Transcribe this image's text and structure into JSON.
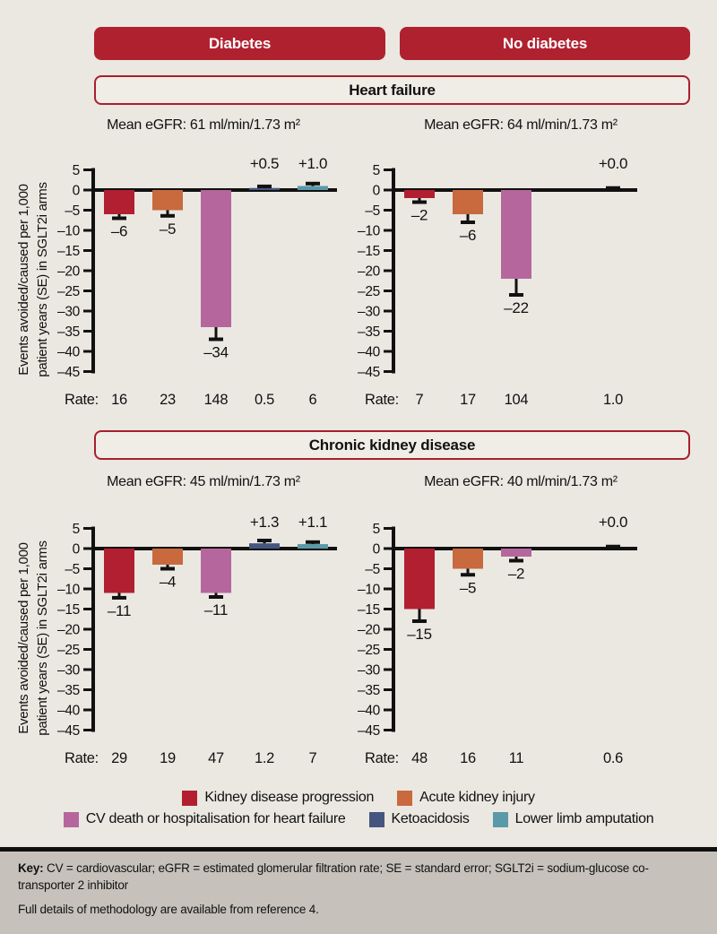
{
  "colors": {
    "background": "#eae8e1",
    "footer_background": "#c6c2bb",
    "header_red": "#b02130",
    "box_border": "#a81f2e",
    "axis": "#111111"
  },
  "header": {
    "group_buttons": [
      {
        "label": "Diabetes"
      },
      {
        "label": "No diabetes"
      }
    ]
  },
  "sections": [
    {
      "title": "Heart failure"
    },
    {
      "title": "Chronic kidney disease"
    }
  ],
  "y_axis": {
    "title_line1": "Events avoided/caused per 1,000",
    "title_line2": "patient years (SE) in SGLT2i arms",
    "range": [
      -45,
      5
    ],
    "ticks": [
      {
        "v": 5,
        "label": "5"
      },
      {
        "v": 0,
        "label": "0"
      },
      {
        "v": -5,
        "label": "–5"
      },
      {
        "v": -10,
        "label": "–10"
      },
      {
        "v": -15,
        "label": "–15"
      },
      {
        "v": -20,
        "label": "–20"
      },
      {
        "v": -25,
        "label": "–25"
      },
      {
        "v": -30,
        "label": "–30"
      },
      {
        "v": -35,
        "label": "–35"
      },
      {
        "v": -40,
        "label": "–40"
      },
      {
        "v": -45,
        "label": "–45"
      }
    ]
  },
  "legend": [
    {
      "label": "Kidney disease progression",
      "color": "#b21f31"
    },
    {
      "label": "Acute kidney injury",
      "color": "#c8693e"
    },
    {
      "label": "CV death or hospitalisation for heart failure",
      "color": "#b5679d"
    },
    {
      "label": "Ketoacidosis",
      "color": "#44567f"
    },
    {
      "label": "Lower limb amputation",
      "color": "#5999a8"
    }
  ],
  "chart_data": [
    {
      "type": "bar",
      "group": "Diabetes",
      "condition": "Heart failure",
      "egfr": "Mean eGFR: 61 ml/min/1.73 m²",
      "rate_label": "Rate:",
      "ylim": [
        -45,
        5
      ],
      "bars": [
        {
          "category": "Kidney disease progression",
          "slot": 0,
          "value": -6,
          "se": 1.0,
          "label": "–6",
          "rate": "16"
        },
        {
          "category": "Acute kidney injury",
          "slot": 1,
          "value": -5,
          "se": 1.4,
          "label": "–5",
          "rate": "23"
        },
        {
          "category": "CV death or hospitalisation for heart failure",
          "slot": 2,
          "value": -34,
          "se": 3.0,
          "label": "–34",
          "rate": "148"
        },
        {
          "category": "Ketoacidosis",
          "slot": 3,
          "value": 0.5,
          "se": 0.4,
          "label": "+0.5",
          "rate": "0.5"
        },
        {
          "category": "Lower limb amputation",
          "slot": 4,
          "value": 1.0,
          "se": 0.6,
          "label": "+1.0",
          "rate": "6"
        }
      ]
    },
    {
      "type": "bar",
      "group": "No diabetes",
      "condition": "Heart failure",
      "egfr": "Mean eGFR: 64 ml/min/1.73 m²",
      "rate_label": "Rate:",
      "ylim": [
        -45,
        5
      ],
      "bars": [
        {
          "category": "Kidney disease progression",
          "slot": 0,
          "value": -2,
          "se": 1.0,
          "label": "–2",
          "rate": "7"
        },
        {
          "category": "Acute kidney injury",
          "slot": 1,
          "value": -6,
          "se": 2.0,
          "label": "–6",
          "rate": "17"
        },
        {
          "category": "CV death or hospitalisation for heart failure",
          "slot": 2,
          "value": -22,
          "se": 4.0,
          "label": "–22",
          "rate": "104"
        },
        {
          "category": "Lower limb amputation",
          "slot": 4,
          "value": 0.0,
          "se": 0.5,
          "label": "+0.0",
          "rate": "1.0"
        }
      ]
    },
    {
      "type": "bar",
      "group": "Diabetes",
      "condition": "Chronic kidney disease",
      "egfr": "Mean eGFR: 45 ml/min/1.73 m²",
      "rate_label": "Rate:",
      "ylim": [
        -45,
        5
      ],
      "bars": [
        {
          "category": "Kidney disease progression",
          "slot": 0,
          "value": -11,
          "se": 1.2,
          "label": "–11",
          "rate": "29"
        },
        {
          "category": "Acute kidney injury",
          "slot": 1,
          "value": -4,
          "se": 1.0,
          "label": "–4",
          "rate": "19"
        },
        {
          "category": "CV death or hospitalisation for heart failure",
          "slot": 2,
          "value": -11,
          "se": 1.0,
          "label": "–11",
          "rate": "47"
        },
        {
          "category": "Ketoacidosis",
          "slot": 3,
          "value": 1.3,
          "se": 0.7,
          "label": "+1.3",
          "rate": "1.2"
        },
        {
          "category": "Lower limb amputation",
          "slot": 4,
          "value": 1.1,
          "se": 0.5,
          "label": "+1.1",
          "rate": "7"
        }
      ]
    },
    {
      "type": "bar",
      "group": "No diabetes",
      "condition": "Chronic kidney disease",
      "egfr": "Mean eGFR: 40 ml/min/1.73 m²",
      "rate_label": "Rate:",
      "ylim": [
        -45,
        5
      ],
      "bars": [
        {
          "category": "Kidney disease progression",
          "slot": 0,
          "value": -15,
          "se": 3.0,
          "label": "–15",
          "rate": "48"
        },
        {
          "category": "Acute kidney injury",
          "slot": 1,
          "value": -5,
          "se": 1.5,
          "label": "–5",
          "rate": "16"
        },
        {
          "category": "CV death or hospitalisation for heart failure",
          "slot": 2,
          "value": -2,
          "se": 1.0,
          "label": "–2",
          "rate": "11"
        },
        {
          "category": "Lower limb amputation",
          "slot": 4,
          "value": 0.0,
          "se": 0.5,
          "label": "+0.0",
          "rate": "0.6"
        }
      ]
    }
  ],
  "footer": {
    "key_label": "Key:",
    "key_text": " CV = cardiovascular; eGFR = estimated glomerular filtration rate; SE = standard error; SGLT2i = sodium-glucose co-transporter 2 inhibitor",
    "methods_text": "Full details of methodology are available from reference 4."
  }
}
